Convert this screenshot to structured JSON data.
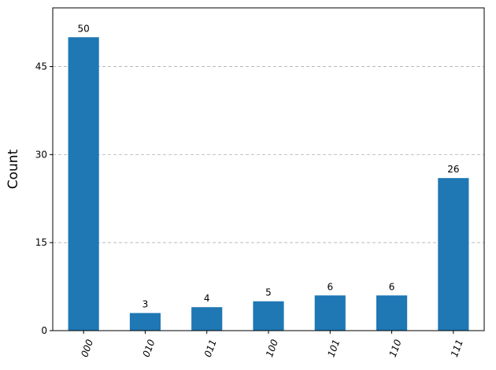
{
  "chart_data": {
    "type": "bar",
    "y_label": "Count",
    "categories": [
      "000",
      "010",
      "011",
      "100",
      "101",
      "110",
      "111"
    ],
    "values": [
      50,
      3,
      4,
      5,
      6,
      6,
      26
    ],
    "color": "#1f77b4",
    "ylim": [
      0,
      55
    ],
    "yticks": [
      0,
      15,
      30,
      45
    ],
    "grid": true
  }
}
